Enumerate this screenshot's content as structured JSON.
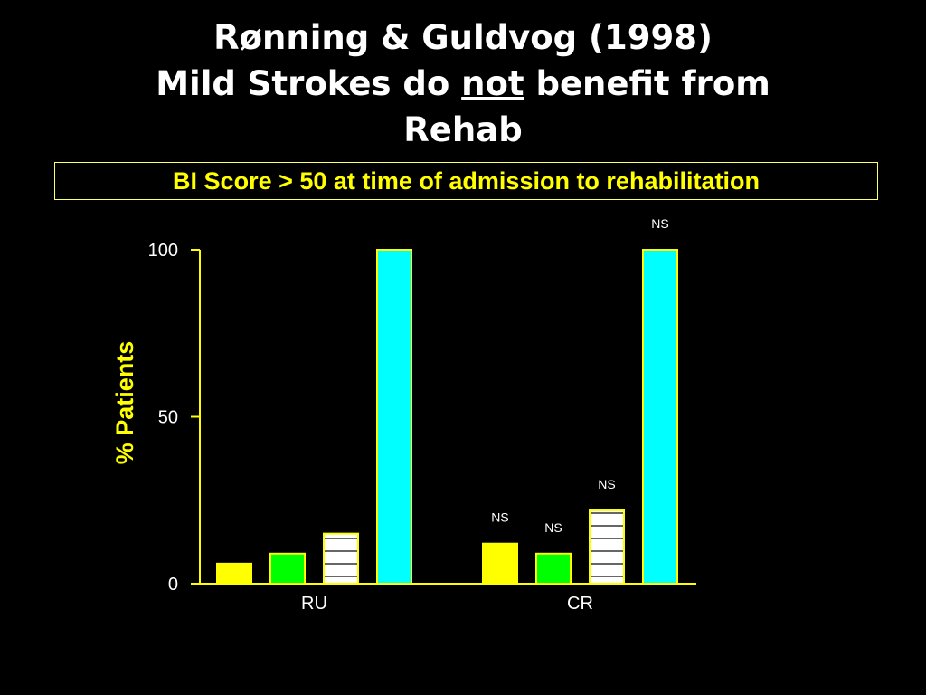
{
  "slide": {
    "title_line1": "Rønning & Guldvog (1998)",
    "title_line2_pre": "Mild Strokes do ",
    "title_line2_em": "not",
    "title_line2_post": " benefit from",
    "title_line3": "Rehab",
    "subtitle": "BI Score > 50 at time of admission to rehabilitation"
  },
  "colors": {
    "background": "#000000",
    "axis": "#ffff00",
    "text": "#ffffff",
    "subtitle": "#ffff00",
    "ylabel": "#ffff00",
    "bar_outline": "#ffff00"
  },
  "chart_data": {
    "type": "bar",
    "ylabel": "% Patients",
    "xlabel": "",
    "ylim": [
      0,
      100
    ],
    "yticks": [
      0,
      50,
      100
    ],
    "categories": [
      "RU",
      "CR"
    ],
    "series": [
      {
        "color": "#ffff00",
        "pattern": "solid",
        "values": [
          6,
          12
        ],
        "annotations": [
          "",
          "NS"
        ]
      },
      {
        "color": "#00ff00",
        "pattern": "solid",
        "values": [
          9,
          9
        ],
        "annotations": [
          "",
          "NS"
        ]
      },
      {
        "color": "#ffffff",
        "pattern": "horizontal-lines",
        "values": [
          15,
          22
        ],
        "annotations": [
          "",
          "NS"
        ]
      },
      {
        "color": "#00ffff",
        "pattern": "solid",
        "values": [
          100,
          100
        ],
        "annotations": [
          "",
          "NS"
        ]
      }
    ]
  }
}
